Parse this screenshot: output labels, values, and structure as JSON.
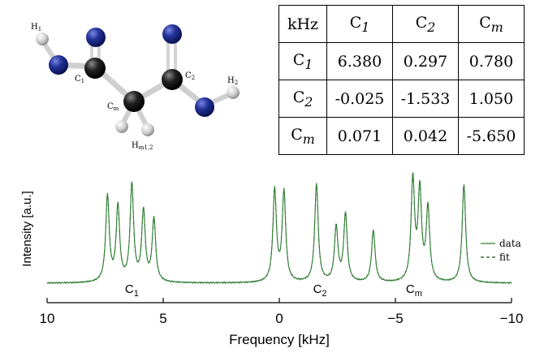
{
  "molecule": {
    "labels": {
      "h1": {
        "base": "H",
        "sub": "1"
      },
      "c1": {
        "base": "C",
        "sub": "1"
      },
      "c2": {
        "base": "C",
        "sub": "2"
      },
      "cm": {
        "base": "C",
        "sub": "m"
      },
      "h2": {
        "base": "H",
        "sub": "2"
      },
      "hm": {
        "base": "H",
        "sub": "m1,2"
      }
    },
    "colors": {
      "nitrogen": "#1c2a8c",
      "carbon": "#111111",
      "hydrogen": "#d8d8d8",
      "bond": "#cfcfcf"
    }
  },
  "table": {
    "corner": "kHz",
    "columns": [
      {
        "base": "C",
        "sub": "1"
      },
      {
        "base": "C",
        "sub": "2"
      },
      {
        "base": "C",
        "sub": "m"
      }
    ],
    "rows": [
      {
        "head": {
          "base": "C",
          "sub": "1"
        },
        "values": [
          "6.380",
          "0.297",
          "0.780"
        ]
      },
      {
        "head": {
          "base": "C",
          "sub": "2"
        },
        "values": [
          "-0.025",
          "-1.533",
          "1.050"
        ]
      },
      {
        "head": {
          "base": "C",
          "sub": "m"
        },
        "values": [
          "0.071",
          "0.042",
          "-5.650"
        ]
      }
    ]
  },
  "chart_data": {
    "type": "line",
    "xlabel": "Frequency [kHz]",
    "ylabel": "Intensity [a.u.]",
    "xlim": [
      10,
      -10
    ],
    "ylim": [
      0,
      1.05
    ],
    "x_ticks": [
      {
        "value": 10,
        "label": "10"
      },
      {
        "value": 5,
        "label": "5"
      },
      {
        "value": 0,
        "label": "0"
      },
      {
        "value": -5,
        "label": "−5"
      },
      {
        "value": -10,
        "label": "−10"
      }
    ],
    "series": [
      {
        "name": "data",
        "style": "solid",
        "color": "#2e7d32"
      },
      {
        "name": "fit",
        "style": "dashed",
        "color": "#1b4d1f"
      }
    ],
    "baseline": 0.04,
    "peaks": [
      {
        "x": 7.4,
        "height": 0.71
      },
      {
        "x": 6.95,
        "height": 0.62
      },
      {
        "x": 6.35,
        "height": 0.8
      },
      {
        "x": 5.85,
        "height": 0.58
      },
      {
        "x": 5.4,
        "height": 0.52
      },
      {
        "x": 0.2,
        "height": 0.76
      },
      {
        "x": -0.2,
        "height": 0.74
      },
      {
        "x": -1.6,
        "height": 0.81
      },
      {
        "x": -2.45,
        "height": 0.45
      },
      {
        "x": -2.85,
        "height": 0.56
      },
      {
        "x": -4.05,
        "height": 0.43
      },
      {
        "x": -5.75,
        "height": 0.84
      },
      {
        "x": -6.05,
        "height": 0.74
      },
      {
        "x": -6.4,
        "height": 0.6
      },
      {
        "x": -7.95,
        "height": 0.81
      }
    ],
    "group_labels": [
      {
        "x": 6.35,
        "base": "C",
        "sub": "1"
      },
      {
        "x": -1.75,
        "base": "C",
        "sub": "2"
      },
      {
        "x": -5.8,
        "base": "C",
        "sub": "m"
      }
    ],
    "legend": {
      "position": "right",
      "data": "data",
      "fit": "fit"
    }
  }
}
